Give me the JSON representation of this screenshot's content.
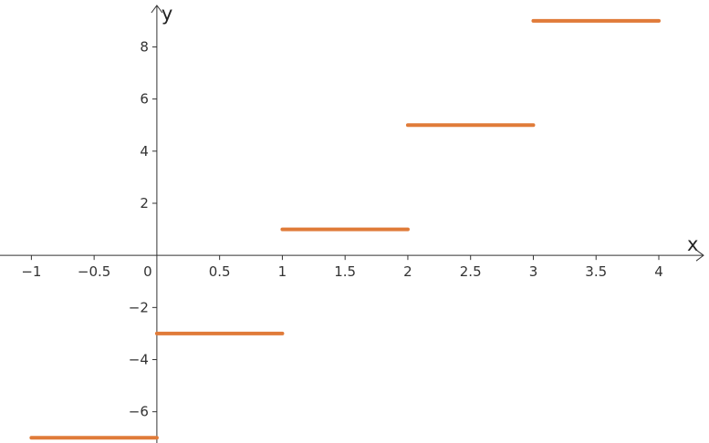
{
  "chart_data": {
    "type": "line",
    "title": "",
    "xlabel": "x",
    "ylabel": "y",
    "xlim": [
      -1.25,
      4.4
    ],
    "ylim": [
      -7.2,
      9.8
    ],
    "x_ticks": [
      -1,
      -0.5,
      0,
      0.5,
      1,
      1.5,
      2,
      2.5,
      3,
      3.5,
      4
    ],
    "x_tick_labels": [
      "−1",
      "−0.5",
      "0",
      "0.5",
      "1",
      "1.5",
      "2",
      "2.5",
      "3",
      "3.5",
      "4"
    ],
    "y_ticks": [
      -6,
      -4,
      -2,
      2,
      4,
      6,
      8
    ],
    "y_tick_labels": [
      "−6",
      "−4",
      "−2",
      "2",
      "4",
      "6",
      "8"
    ],
    "grid": false,
    "series": [
      {
        "color": "#e07b39",
        "segments": [
          {
            "x": [
              -1,
              0
            ],
            "y": [
              -7,
              -7
            ]
          },
          {
            "x": [
              0,
              1
            ],
            "y": [
              -3,
              -3
            ]
          },
          {
            "x": [
              1,
              2
            ],
            "y": [
              1,
              1
            ]
          },
          {
            "x": [
              2,
              3
            ],
            "y": [
              5,
              5
            ]
          },
          {
            "x": [
              3,
              4
            ],
            "y": [
              9,
              9
            ]
          }
        ]
      }
    ]
  }
}
